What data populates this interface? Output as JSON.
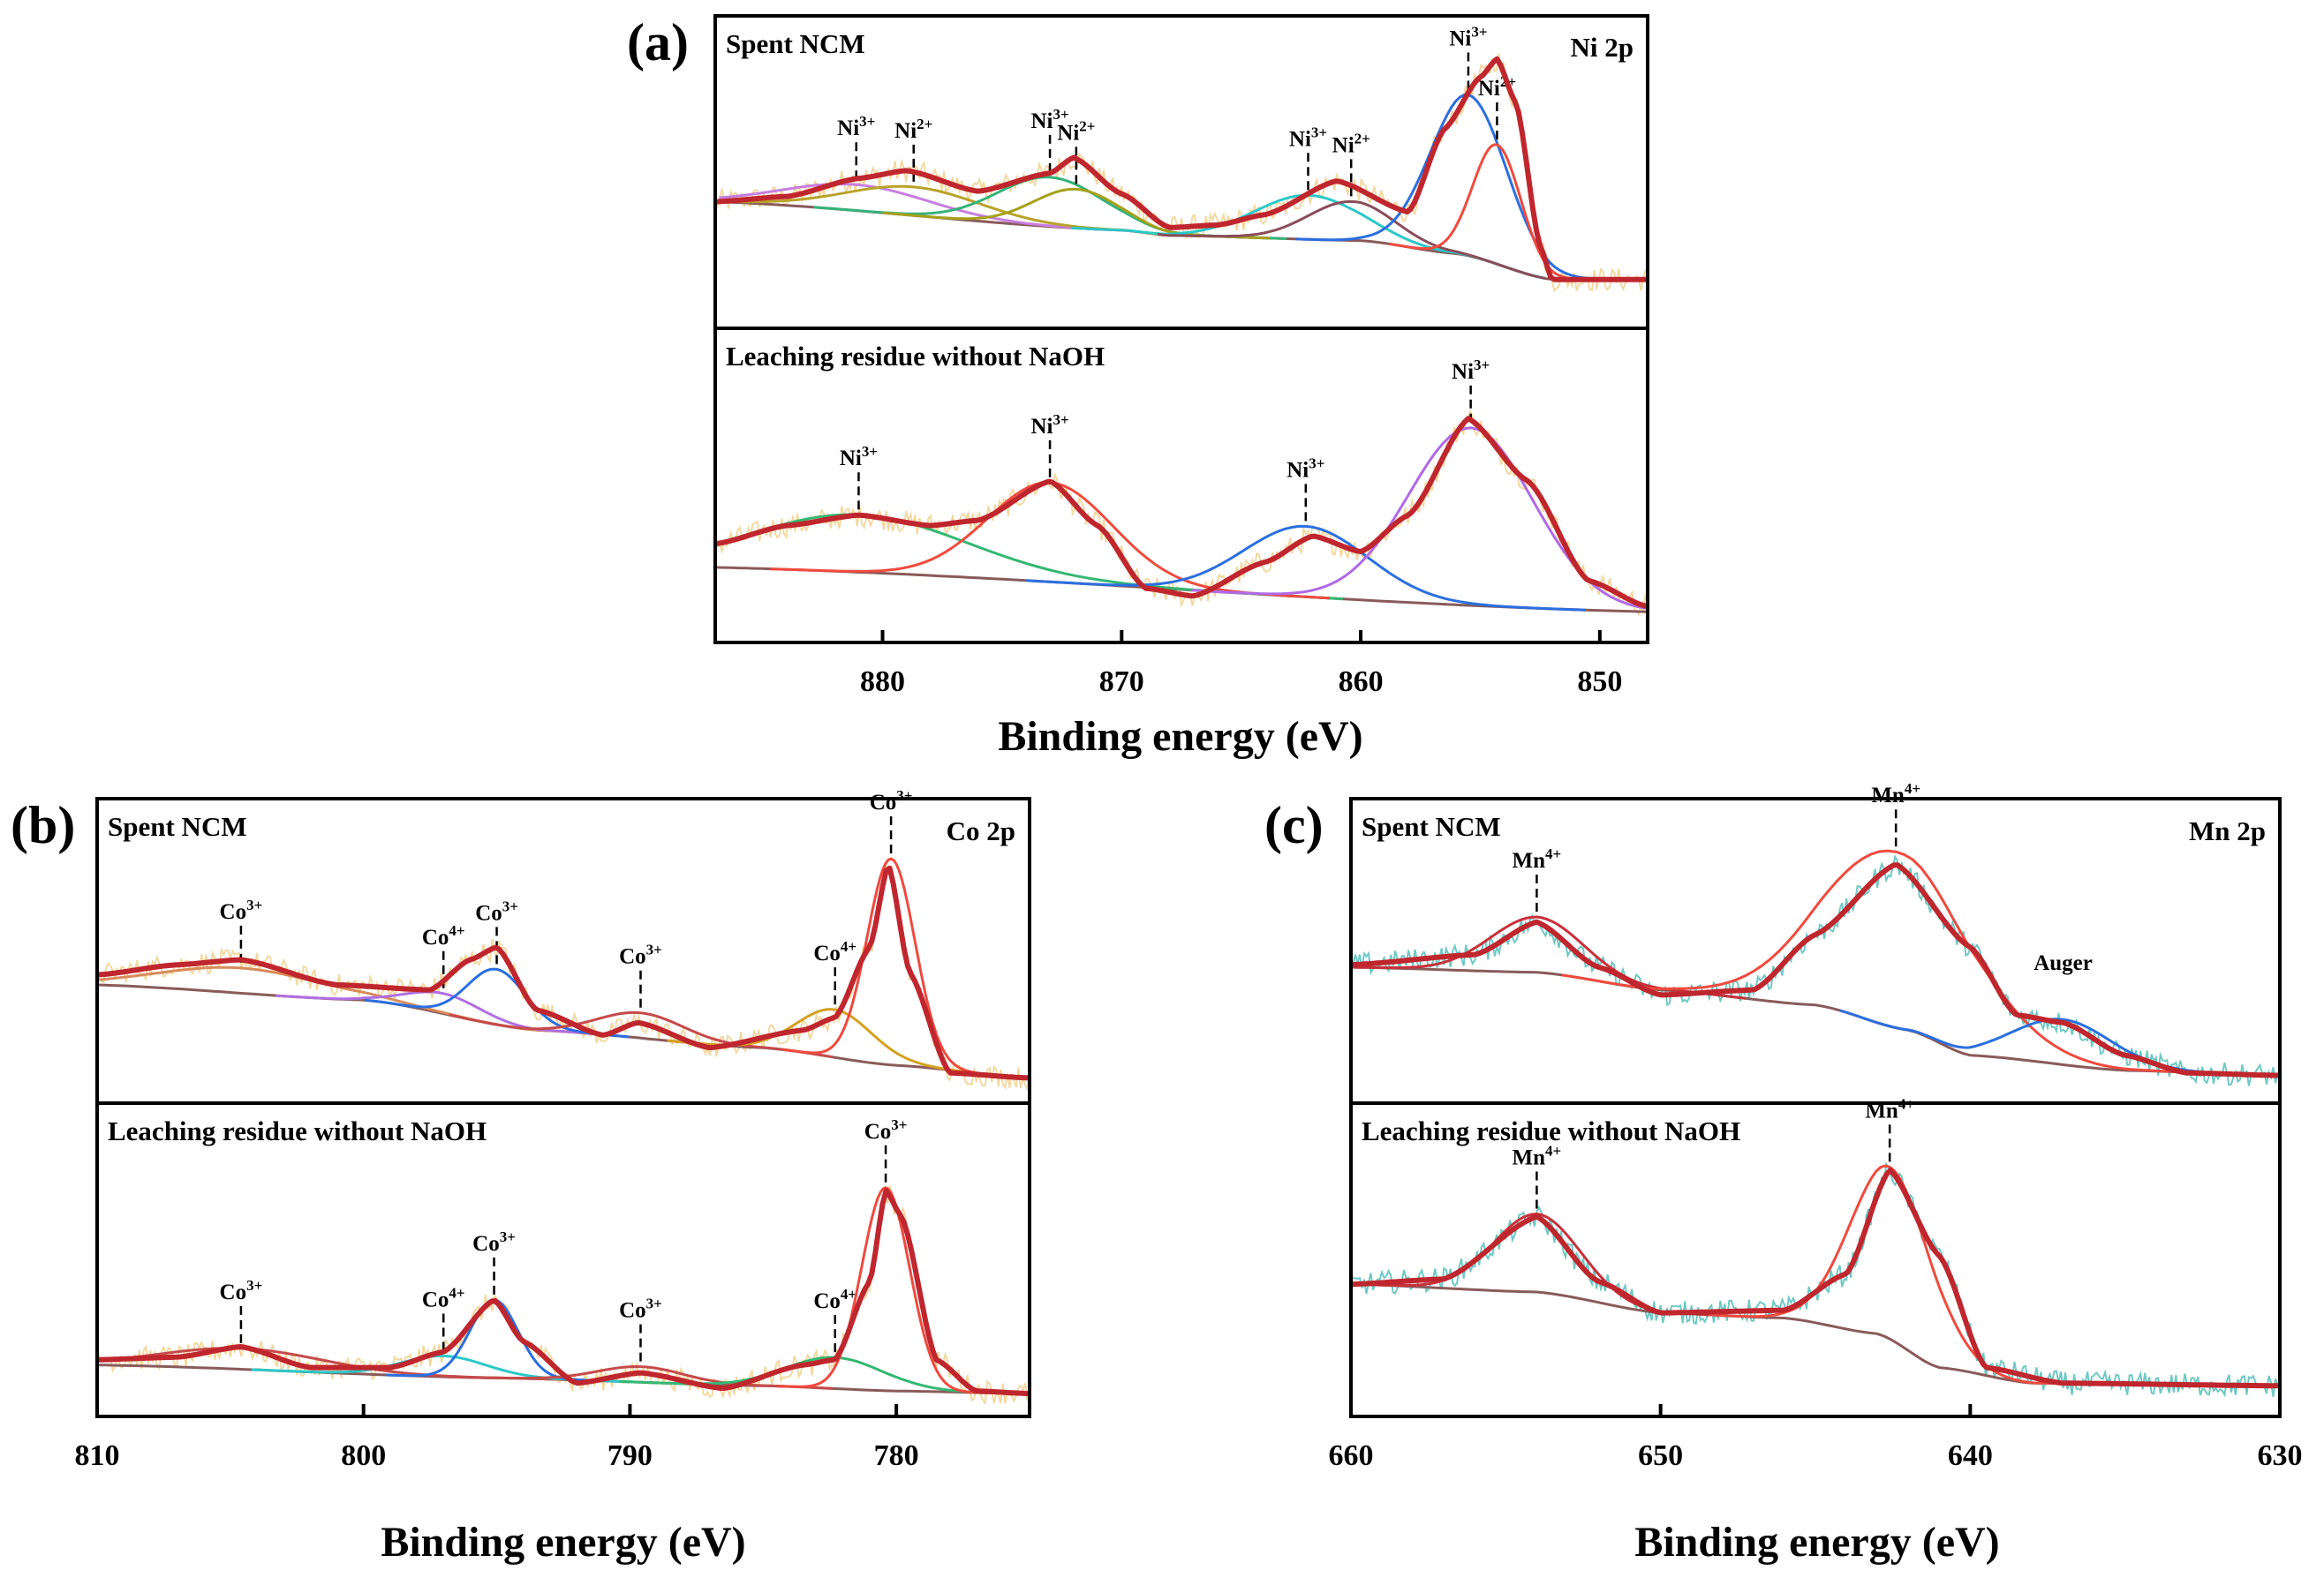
{
  "chart_data": [
    {
      "panel": "(a)",
      "type": "line",
      "element": "Ni 2p",
      "xlabel": "Binding energy (eV)",
      "xlim": [
        887,
        848
      ],
      "x_ticks": [
        880,
        870,
        860,
        850
      ],
      "subplots": [
        {
          "sample": "Spent NCM",
          "ylim": [
            0,
            1
          ],
          "envelope_points": [
            [
              887,
              0.42
            ],
            [
              884,
              0.44
            ],
            [
              881,
              0.51
            ],
            [
              879,
              0.54
            ],
            [
              876,
              0.46
            ],
            [
              873,
              0.53
            ],
            [
              872,
              0.59
            ],
            [
              870,
              0.45
            ],
            [
              868,
              0.32
            ],
            [
              866,
              0.33
            ],
            [
              864,
              0.37
            ],
            [
              861,
              0.5
            ],
            [
              858,
              0.38
            ],
            [
              856.5,
              0.7
            ],
            [
              855,
              0.9
            ],
            [
              854.3,
              0.97
            ],
            [
              853.5,
              0.8
            ],
            [
              852.5,
              0.25
            ],
            [
              852,
              0.12
            ]
          ],
          "background_points": [
            [
              887,
              0.42
            ],
            [
              870,
              0.31
            ],
            [
              868,
              0.29
            ],
            [
              860,
              0.27
            ],
            [
              856,
              0.22
            ],
            [
              852,
              0.12
            ]
          ],
          "components": [
            {
              "label_base": "Ni",
              "label_sup": "3+",
              "center": 881.1,
              "height": 0.1,
              "width": 3.0,
              "color": "#c77ee0"
            },
            {
              "label_base": "Ni",
              "label_sup": "2+",
              "center": 878.7,
              "height": 0.11,
              "width": 2.8,
              "color": "#b8a32a"
            },
            {
              "label_base": "Ni",
              "label_sup": "3+",
              "center": 873.0,
              "height": 0.19,
              "width": 2.2,
              "color": "#36b27a"
            },
            {
              "label_base": "Ni",
              "label_sup": "2+",
              "center": 871.9,
              "height": 0.15,
              "width": 1.8,
              "color": "#a6a11c"
            },
            {
              "label_base": "Ni",
              "label_sup": "3+",
              "center": 862.2,
              "height": 0.17,
              "width": 2.2,
              "color": "#2cc8c8"
            },
            {
              "label_base": "Ni",
              "label_sup": "2+",
              "center": 860.4,
              "height": 0.15,
              "width": 1.8,
              "color": "#8a4d5a"
            },
            {
              "label_base": "Ni",
              "label_sup": "3+",
              "center": 855.5,
              "height": 0.62,
              "width": 1.6,
              "color": "#2b6fe0"
            },
            {
              "label_base": "Ni",
              "label_sup": "2+",
              "center": 854.3,
              "height": 0.46,
              "width": 1.0,
              "color": "#f04a3e"
            }
          ]
        },
        {
          "sample": "Leaching residue without NaOH",
          "ylim": [
            0,
            1
          ],
          "envelope_points": [
            [
              887,
              0.31
            ],
            [
              884,
              0.38
            ],
            [
              881,
              0.42
            ],
            [
              878,
              0.38
            ],
            [
              876,
              0.4
            ],
            [
              873,
              0.55
            ],
            [
              871,
              0.38
            ],
            [
              869,
              0.14
            ],
            [
              867,
              0.11
            ],
            [
              864,
              0.24
            ],
            [
              862,
              0.34
            ],
            [
              860,
              0.28
            ],
            [
              858,
              0.42
            ],
            [
              855.5,
              0.79
            ],
            [
              853,
              0.55
            ],
            [
              850.5,
              0.17
            ],
            [
              848,
              0.07
            ]
          ],
          "background_points": [
            [
              887,
              0.22
            ],
            [
              848,
              0.05
            ]
          ],
          "components": [
            {
              "label_base": "Ni",
              "label_sup": "3+",
              "center": 881.0,
              "height": 0.22,
              "width": 4.5,
              "color": "#33b872"
            },
            {
              "label_base": "Ni",
              "label_sup": "3+",
              "center": 873.0,
              "height": 0.38,
              "width": 2.6,
              "color": "#f04a3e"
            },
            {
              "label_base": "Ni",
              "label_sup": "3+",
              "center": 862.3,
              "height": 0.27,
              "width": 2.6,
              "color": "#2b6fe0"
            },
            {
              "label_base": "Ni",
              "label_sup": "3+",
              "center": 855.4,
              "height": 0.68,
              "width": 2.6,
              "color": "#b06ae6"
            }
          ]
        }
      ]
    },
    {
      "panel": "(b)",
      "type": "line",
      "element": "Co 2p",
      "xlabel": "Binding energy (eV)",
      "xlim": [
        810,
        775
      ],
      "x_ticks": [
        810,
        800,
        790,
        780
      ],
      "subplots": [
        {
          "sample": "Spent NCM",
          "ylim": [
            0,
            1
          ],
          "envelope_points": [
            [
              810,
              0.44
            ],
            [
              807,
              0.48
            ],
            [
              804.6,
              0.5
            ],
            [
              801,
              0.4
            ],
            [
              797.5,
              0.38
            ],
            [
              796,
              0.5
            ],
            [
              795,
              0.55
            ],
            [
              793.5,
              0.3
            ],
            [
              791,
              0.2
            ],
            [
              789.7,
              0.25
            ],
            [
              787,
              0.15
            ],
            [
              783.5,
              0.22
            ],
            [
              782.3,
              0.27
            ],
            [
              781,
              0.55
            ],
            [
              780.3,
              0.88
            ],
            [
              779.5,
              0.45
            ],
            [
              778,
              0.05
            ],
            [
              775,
              0.03
            ]
          ],
          "background_points": [
            [
              810,
              0.4
            ],
            [
              800,
              0.34
            ],
            [
              793.5,
              0.22
            ],
            [
              785,
              0.15
            ],
            [
              780,
              0.08
            ],
            [
              775,
              0.03
            ]
          ],
          "components": [
            {
              "label_base": "Co",
              "label_sup": "3+",
              "center": 804.6,
              "height": 0.1,
              "width": 3.0,
              "color": "#d98a5a"
            },
            {
              "label_base": "Co",
              "label_sup": "4+",
              "center": 797.0,
              "height": 0.08,
              "width": 1.4,
              "color": "#b16fe0"
            },
            {
              "label_base": "Co",
              "label_sup": "3+",
              "center": 795.0,
              "height": 0.22,
              "width": 1.1,
              "color": "#2b6fe0"
            },
            {
              "label_base": "Co",
              "label_sup": "3+",
              "center": 789.6,
              "height": 0.1,
              "width": 1.6,
              "color": "#c64a4a"
            },
            {
              "label_base": "Co",
              "label_sup": "4+",
              "center": 782.3,
              "height": 0.19,
              "width": 1.4,
              "color": "#d4a020"
            },
            {
              "label_base": "Co",
              "label_sup": "3+",
              "center": 780.2,
              "height": 0.82,
              "width": 0.9,
              "color": "#f04a3e"
            }
          ]
        },
        {
          "sample": "Leaching residue without NaOH",
          "ylim": [
            0,
            1
          ],
          "envelope_points": [
            [
              810,
              0.15
            ],
            [
              807,
              0.16
            ],
            [
              804.6,
              0.2
            ],
            [
              802,
              0.12
            ],
            [
              799,
              0.12
            ],
            [
              797,
              0.18
            ],
            [
              795.1,
              0.38
            ],
            [
              794,
              0.22
            ],
            [
              792,
              0.06
            ],
            [
              789.6,
              0.1
            ],
            [
              786.5,
              0.04
            ],
            [
              783.5,
              0.13
            ],
            [
              782.3,
              0.15
            ],
            [
              781,
              0.45
            ],
            [
              780.4,
              0.8
            ],
            [
              779.8,
              0.7
            ],
            [
              778.5,
              0.15
            ],
            [
              777,
              0.03
            ],
            [
              775,
              0.02
            ]
          ],
          "background_points": [
            [
              810,
              0.13
            ],
            [
              795,
              0.08
            ],
            [
              785,
              0.05
            ],
            [
              780,
              0.03
            ],
            [
              775,
              0.02
            ]
          ],
          "components": [
            {
              "label_base": "Co",
              "label_sup": "3+",
              "center": 804.6,
              "height": 0.08,
              "width": 3.0,
              "color": "#c64a4a"
            },
            {
              "label_base": "Co",
              "label_sup": "4+",
              "center": 797.0,
              "height": 0.08,
              "width": 1.6,
              "color": "#2cc8c8"
            },
            {
              "label_base": "Co",
              "label_sup": "3+",
              "center": 795.1,
              "height": 0.3,
              "width": 0.9,
              "color": "#2b6fe0"
            },
            {
              "label_base": "Co",
              "label_sup": "3+",
              "center": 789.6,
              "height": 0.06,
              "width": 1.6,
              "color": "#c64a4a"
            },
            {
              "label_base": "Co",
              "label_sup": "4+",
              "center": 782.3,
              "height": 0.12,
              "width": 1.8,
              "color": "#33b872"
            },
            {
              "label_base": "Co",
              "label_sup": "3+",
              "center": 780.4,
              "height": 0.78,
              "width": 0.9,
              "color": "#f04a3e"
            }
          ]
        }
      ]
    },
    {
      "panel": "(c)",
      "type": "line",
      "element": "Mn 2p",
      "xlabel": "Binding energy (eV)",
      "xlim": [
        660,
        630
      ],
      "x_ticks": [
        660,
        650,
        640,
        630
      ],
      "subplots": [
        {
          "sample": "Spent NCM",
          "ylim": [
            0,
            1
          ],
          "envelope_points": [
            [
              660,
              0.48
            ],
            [
              656,
              0.52
            ],
            [
              654,
              0.65
            ],
            [
              652,
              0.47
            ],
            [
              650,
              0.36
            ],
            [
              647,
              0.38
            ],
            [
              645,
              0.6
            ],
            [
              642.4,
              0.88
            ],
            [
              640,
              0.55
            ],
            [
              638.5,
              0.28
            ],
            [
              637,
              0.25
            ],
            [
              635,
              0.12
            ],
            [
              633,
              0.05
            ],
            [
              630,
              0.04
            ]
          ],
          "background_points": [
            [
              660,
              0.47
            ],
            [
              654,
              0.45
            ],
            [
              650,
              0.38
            ],
            [
              645,
              0.32
            ],
            [
              642,
              0.22
            ],
            [
              640,
              0.12
            ],
            [
              635,
              0.06
            ],
            [
              630,
              0.04
            ]
          ],
          "components": [
            {
              "label_base": "Mn",
              "label_sup": "4+",
              "center": 654.0,
              "height": 0.22,
              "width": 1.5,
              "color": "#c8303a"
            },
            {
              "label_base": "Mn",
              "label_sup": "4+",
              "center": 642.4,
              "height": 0.7,
              "width": 2.4,
              "color": "#f04a3e"
            },
            {
              "label_base": "Auger",
              "label_sup": "",
              "center": 637.0,
              "height": 0.18,
              "width": 1.6,
              "color": "#2b6fe0"
            }
          ]
        },
        {
          "sample": "Leaching residue without NaOH",
          "ylim": [
            0,
            1
          ],
          "envelope_points": [
            [
              660,
              0.44
            ],
            [
              657,
              0.46
            ],
            [
              654,
              0.7
            ],
            [
              652,
              0.45
            ],
            [
              650,
              0.33
            ],
            [
              646,
              0.34
            ],
            [
              644,
              0.48
            ],
            [
              642.6,
              0.88
            ],
            [
              641,
              0.55
            ],
            [
              639.5,
              0.12
            ],
            [
              637,
              0.06
            ],
            [
              630,
              0.05
            ]
          ],
          "background_points": [
            [
              660,
              0.44
            ],
            [
              654,
              0.41
            ],
            [
              650,
              0.33
            ],
            [
              646,
              0.31
            ],
            [
              643,
              0.25
            ],
            [
              641,
              0.12
            ],
            [
              638,
              0.06
            ],
            [
              630,
              0.05
            ]
          ],
          "components": [
            {
              "label_base": "Mn",
              "label_sup": "4+",
              "center": 654.0,
              "height": 0.3,
              "width": 1.4,
              "color": "#c8303a"
            },
            {
              "label_base": "Mn",
              "label_sup": "4+",
              "center": 642.6,
              "height": 0.66,
              "width": 1.3,
              "color": "#f04a3e"
            }
          ]
        }
      ]
    }
  ],
  "colors": {
    "envelope": "#c0262d",
    "background": "#8a5a5a",
    "raw_data_ni_co": "#f3d9a2",
    "raw_data_mn": "#6fc9c4",
    "frame": "#000000"
  }
}
